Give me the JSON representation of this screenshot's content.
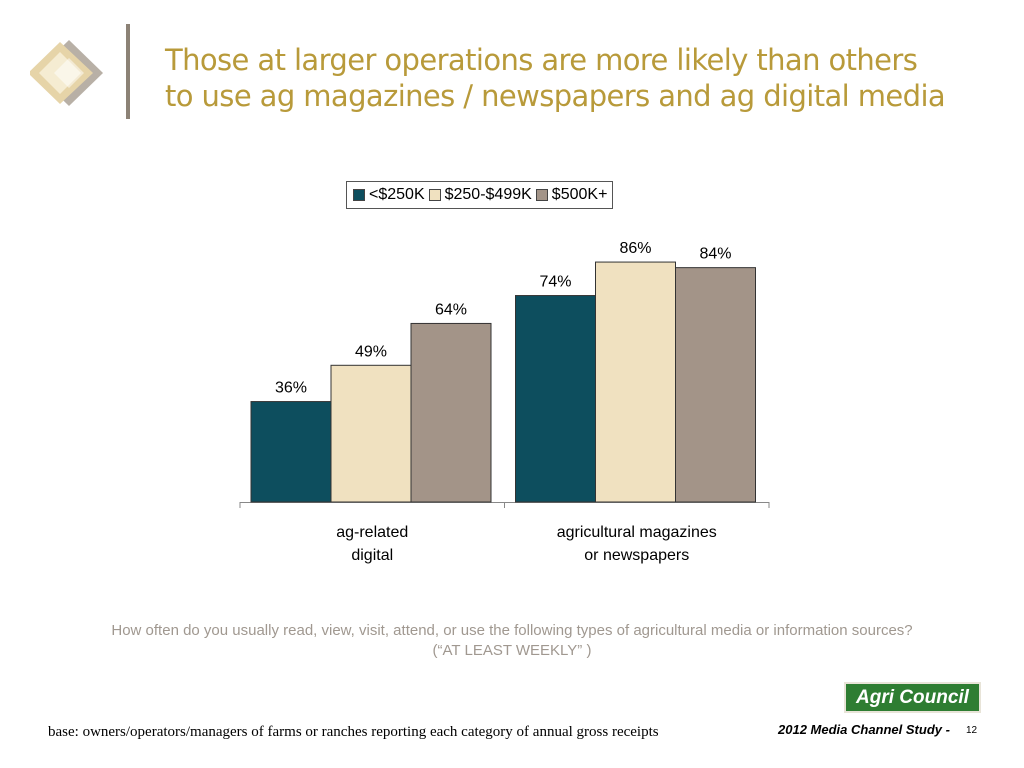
{
  "title": {
    "line1": "Those at larger operations are more likely than others",
    "line2": "to use ag magazines / newspapers and ag digital media"
  },
  "colors": {
    "title": "#b89a3a",
    "series": [
      "#0d4e5e",
      "#f0e1c0",
      "#a39488"
    ],
    "logo_light": "#f5ecd2",
    "logo_mid": "#e6d4a8",
    "logo_gray": "#b8b0a6",
    "badge": "#2e7d32"
  },
  "chart_data": {
    "type": "bar",
    "title": "",
    "xlabel": "",
    "ylabel": "",
    "ylim": [
      0,
      100
    ],
    "grid": false,
    "legend_position": "top-center",
    "categories": [
      [
        "ag-related",
        "digital"
      ],
      [
        "agricultural magazines",
        "or newspapers"
      ]
    ],
    "series": [
      {
        "name": "<$250K",
        "values": [
          36,
          74
        ]
      },
      {
        "name": "$250-$499K",
        "values": [
          49,
          86
        ]
      },
      {
        "name": "$500K+",
        "values": [
          64,
          84
        ]
      }
    ],
    "value_labels": [
      [
        "36%",
        "74%"
      ],
      [
        "49%",
        "86%"
      ],
      [
        "64%",
        "84%"
      ]
    ]
  },
  "question": {
    "line1": "How often do you usually read, view, visit, attend, or use the following types of agricultural media or information sources?",
    "line2": "(“AT LEAST WEEKLY” )"
  },
  "logo": {
    "text": "Agri Council"
  },
  "footer": {
    "base_note": "base:  owners/operators/managers of farms or ranches reporting each category of annual gross receipts",
    "study": "2012 Media Channel Study -",
    "page": "12"
  }
}
